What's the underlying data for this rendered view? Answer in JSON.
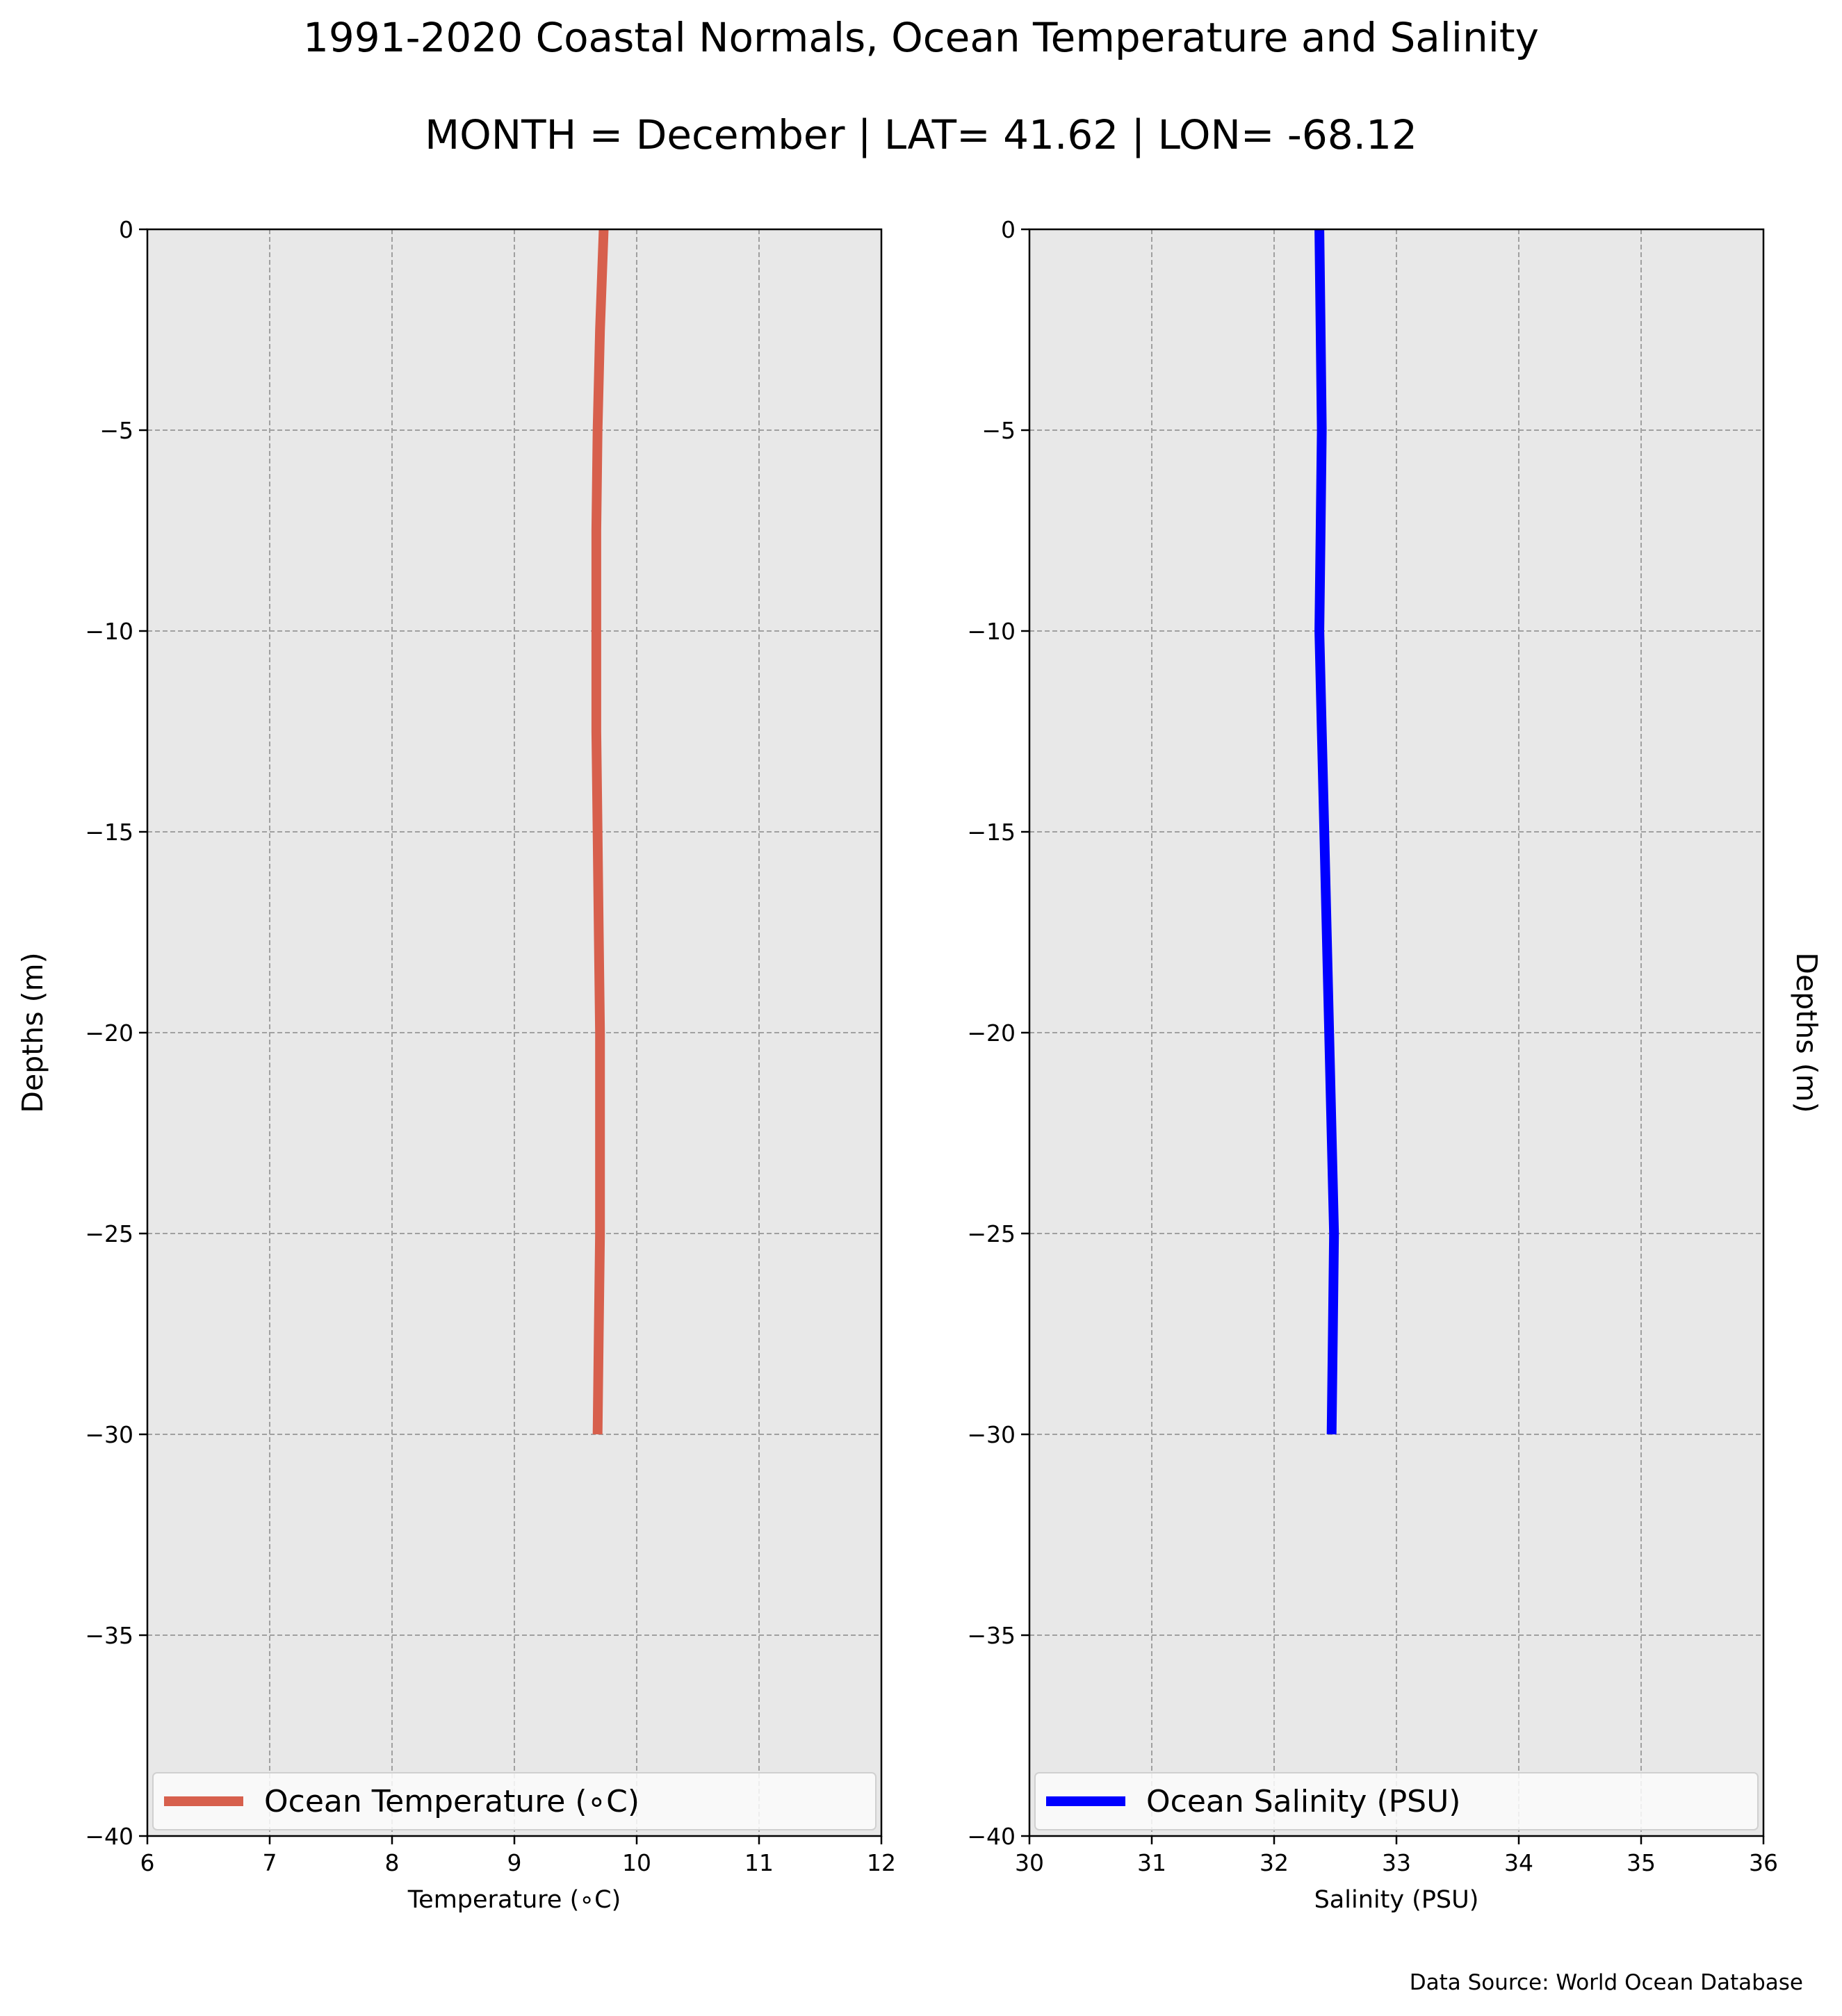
{
  "figure": {
    "title": "1991-2020 Coastal Normals, Ocean Temperature and Salinity",
    "subtitle": "MONTH = December | LAT= 41.62 | LON= -68.12",
    "source": "Data Source: World Ocean Database"
  },
  "chart_data": [
    {
      "type": "line",
      "series": [
        {
          "name": "Ocean Temperature (∘C)",
          "x": [
            9.73,
            9.7,
            9.68,
            9.67,
            9.67,
            9.67,
            9.68,
            9.69,
            9.7,
            9.7,
            9.7,
            9.69,
            9.68
          ],
          "y": [
            0,
            -2.5,
            -5,
            -7.5,
            -10,
            -12.5,
            -15,
            -17.5,
            -20,
            -22.5,
            -25,
            -27.5,
            -30
          ],
          "color": "#d7604d"
        }
      ],
      "xlabel": "Temperature (∘C)",
      "ylabel": "Depths (m)",
      "xlim": [
        6,
        12
      ],
      "ylim": [
        -40,
        0
      ],
      "xticks": [
        6,
        7,
        8,
        9,
        10,
        11,
        12
      ],
      "xtick_labels": [
        "6",
        "7",
        "8",
        "9",
        "10",
        "11",
        "12"
      ],
      "yticks": [
        0,
        -5,
        -10,
        -15,
        -20,
        -25,
        -30,
        -35,
        -40
      ],
      "ytick_labels": [
        "0",
        "−5",
        "−10",
        "−15",
        "−20",
        "−25",
        "−30",
        "−35",
        "−40"
      ],
      "grid": true,
      "legend_position": "lower center",
      "ylabel_side": "left"
    },
    {
      "type": "line",
      "series": [
        {
          "name": "Ocean Salinity (PSU)",
          "x": [
            32.37,
            32.38,
            32.39,
            32.38,
            32.37,
            32.39,
            32.41,
            32.43,
            32.45,
            32.47,
            32.49,
            32.48,
            32.47
          ],
          "y": [
            0,
            -2.5,
            -5,
            -7.5,
            -10,
            -12.5,
            -15,
            -17.5,
            -20,
            -22.5,
            -25,
            -27.5,
            -30
          ],
          "color": "#0000ff"
        }
      ],
      "xlabel": "Salinity (PSU)",
      "ylabel": "Depths (m)",
      "xlim": [
        30,
        36
      ],
      "ylim": [
        -40,
        0
      ],
      "xticks": [
        30,
        31,
        32,
        33,
        34,
        35,
        36
      ],
      "xtick_labels": [
        "30",
        "31",
        "32",
        "33",
        "34",
        "35",
        "36"
      ],
      "yticks": [
        0,
        -5,
        -10,
        -15,
        -20,
        -25,
        -30,
        -35,
        -40
      ],
      "ytick_labels": [
        "0",
        "−5",
        "−10",
        "−15",
        "−20",
        "−25",
        "−30",
        "−35",
        "−40"
      ],
      "grid": true,
      "legend_position": "lower center",
      "ylabel_side": "right"
    }
  ]
}
